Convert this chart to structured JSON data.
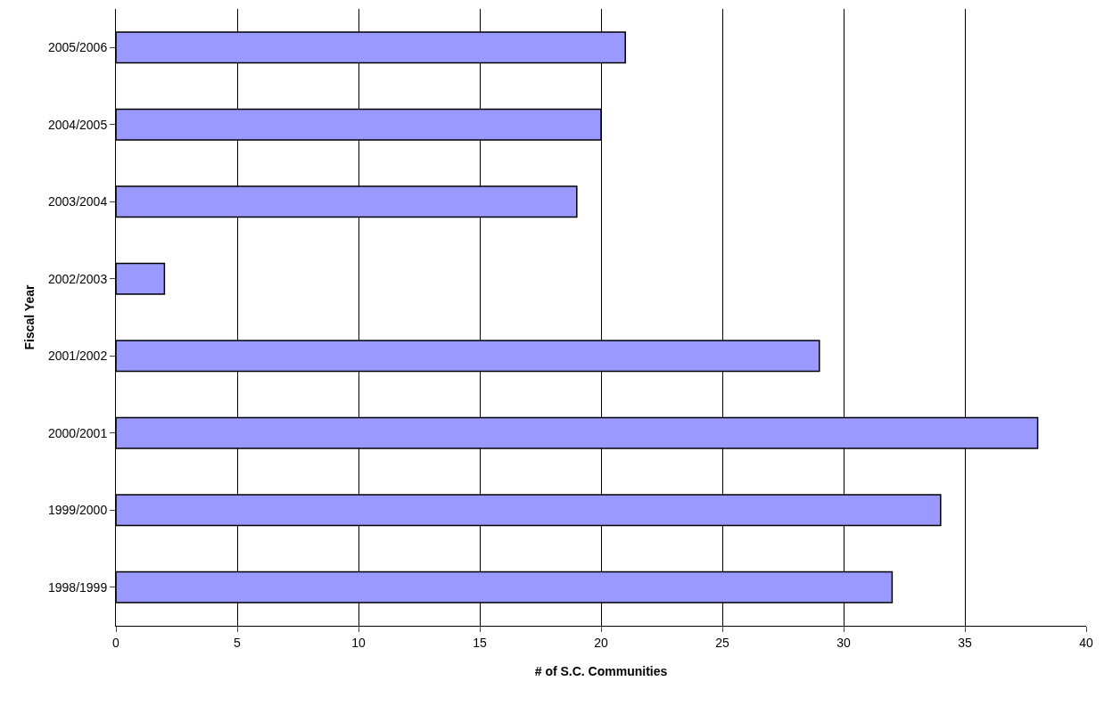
{
  "chart_data": {
    "type": "bar",
    "orientation": "horizontal",
    "xlabel": "# of S.C. Communities",
    "ylabel": "Fiscal Year",
    "categories": [
      "2005/2006",
      "2004/2005",
      "2003/2004",
      "2002/2003",
      "2001/2002",
      "2000/2001",
      "1999/2000",
      "1998/1999"
    ],
    "values": [
      21,
      20,
      19,
      2,
      29,
      38,
      34,
      32
    ],
    "color": "#9999ff",
    "xlim": [
      0,
      40
    ],
    "xticks": [
      0,
      5,
      10,
      15,
      20,
      25,
      30,
      35,
      40
    ],
    "grid": "x"
  }
}
